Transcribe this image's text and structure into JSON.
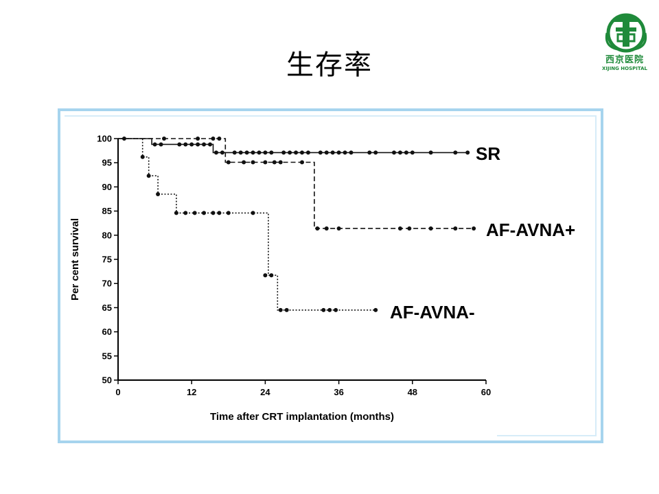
{
  "slide": {
    "title": "生存率"
  },
  "logo": {
    "text_cn": "西京医院",
    "text_en": "XIJING HOSPITAL",
    "color": "#1f8a3a",
    "icon": "hospital-emblem-icon"
  },
  "chart_data": {
    "type": "line",
    "step": true,
    "title": "",
    "xlabel": "Time after CRT implantation (months)",
    "ylabel": "Per cent survival",
    "xlim": [
      0,
      60
    ],
    "ylim": [
      50,
      100
    ],
    "xticks": [
      0,
      12,
      24,
      36,
      48,
      60
    ],
    "yticks": [
      50,
      55,
      60,
      65,
      70,
      75,
      80,
      85,
      90,
      95,
      100
    ],
    "grid": false,
    "series": [
      {
        "name": "SR",
        "style": "solid",
        "steps": [
          [
            0,
            100
          ],
          [
            5.5,
            100
          ],
          [
            5.5,
            98.8
          ],
          [
            15.5,
            98.8
          ],
          [
            15.5,
            97.1
          ],
          [
            57,
            97.1
          ]
        ],
        "censored": [
          [
            1,
            100
          ],
          [
            6,
            98.8
          ],
          [
            7,
            98.8
          ],
          [
            10,
            98.8
          ],
          [
            11,
            98.8
          ],
          [
            12,
            98.8
          ],
          [
            13,
            98.8
          ],
          [
            14,
            98.8
          ],
          [
            15,
            98.8
          ],
          [
            16,
            97.1
          ],
          [
            17,
            97.1
          ],
          [
            19,
            97.1
          ],
          [
            20,
            97.1
          ],
          [
            21,
            97.1
          ],
          [
            22,
            97.1
          ],
          [
            23,
            97.1
          ],
          [
            24,
            97.1
          ],
          [
            25,
            97.1
          ],
          [
            27,
            97.1
          ],
          [
            28,
            97.1
          ],
          [
            29,
            97.1
          ],
          [
            30,
            97.1
          ],
          [
            31,
            97.1
          ],
          [
            33,
            97.1
          ],
          [
            34,
            97.1
          ],
          [
            35,
            97.1
          ],
          [
            36,
            97.1
          ],
          [
            37,
            97.1
          ],
          [
            38,
            97.1
          ],
          [
            41,
            97.1
          ],
          [
            42,
            97.1
          ],
          [
            45,
            97.1
          ],
          [
            46,
            97.1
          ],
          [
            47,
            97.1
          ],
          [
            48,
            97.1
          ],
          [
            51,
            97.1
          ],
          [
            55,
            97.1
          ],
          [
            57,
            97.1
          ]
        ]
      },
      {
        "name": "AF-AVNA+",
        "style": "dashed",
        "steps": [
          [
            0,
            100
          ],
          [
            17.5,
            100
          ],
          [
            17.5,
            95.1
          ],
          [
            32,
            95.1
          ],
          [
            32,
            81.4
          ],
          [
            58,
            81.4
          ]
        ],
        "censored": [
          [
            7.5,
            100
          ],
          [
            13,
            100
          ],
          [
            15.5,
            100
          ],
          [
            16.5,
            100
          ],
          [
            18,
            95.1
          ],
          [
            20.5,
            95.1
          ],
          [
            22,
            95.1
          ],
          [
            24,
            95.1
          ],
          [
            25.5,
            95.1
          ],
          [
            26.5,
            95.1
          ],
          [
            30,
            95.1
          ],
          [
            32.5,
            81.4
          ],
          [
            34,
            81.4
          ],
          [
            36,
            81.4
          ],
          [
            46,
            81.4
          ],
          [
            47.5,
            81.4
          ],
          [
            51,
            81.4
          ],
          [
            55,
            81.4
          ],
          [
            58,
            81.4
          ]
        ]
      },
      {
        "name": "AF-AVNA-",
        "style": "dotted",
        "steps": [
          [
            0,
            100
          ],
          [
            4,
            100
          ],
          [
            4,
            96.2
          ],
          [
            5,
            96.2
          ],
          [
            5,
            92.3
          ],
          [
            6.5,
            92.3
          ],
          [
            6.5,
            88.5
          ],
          [
            9.5,
            88.5
          ],
          [
            9.5,
            84.6
          ],
          [
            24.5,
            84.6
          ],
          [
            24.5,
            71.7
          ],
          [
            26,
            71.7
          ],
          [
            26,
            64.5
          ],
          [
            42,
            64.5
          ]
        ],
        "censored": [
          [
            4,
            96.2
          ],
          [
            5,
            92.3
          ],
          [
            6.5,
            88.5
          ],
          [
            9.5,
            84.6
          ],
          [
            11,
            84.6
          ],
          [
            12.5,
            84.6
          ],
          [
            14,
            84.6
          ],
          [
            15.5,
            84.6
          ],
          [
            16.5,
            84.6
          ],
          [
            18,
            84.6
          ],
          [
            22,
            84.6
          ],
          [
            24,
            71.7
          ],
          [
            25,
            71.7
          ],
          [
            26.5,
            64.5
          ],
          [
            27.5,
            64.5
          ],
          [
            33.5,
            64.5
          ],
          [
            34.5,
            64.5
          ],
          [
            35.5,
            64.5
          ],
          [
            42,
            64.5
          ]
        ]
      }
    ]
  }
}
